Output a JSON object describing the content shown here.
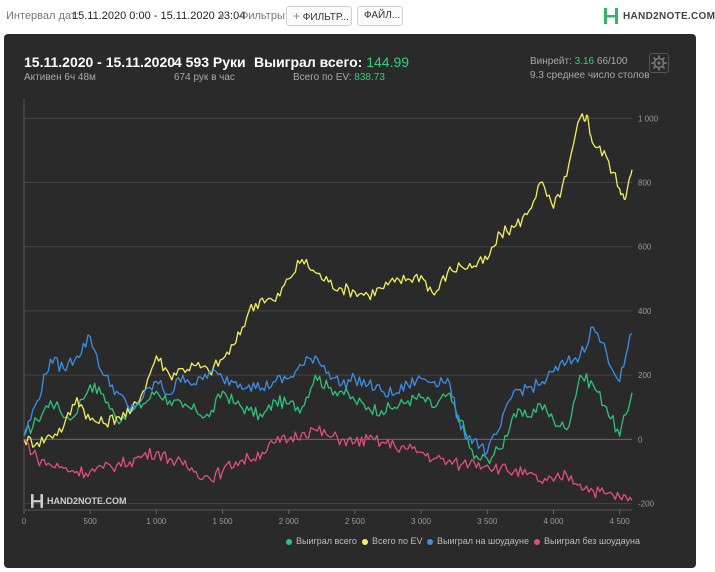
{
  "topbar": {
    "interval_label": "Интервал дат:",
    "interval_value": "15.11.2020 0:00 - 15.11.2020 23:04",
    "filters_label": "Фильтры:",
    "filters_button": "ФИЛЬТР...",
    "files_button": "ФАЙЛ...",
    "brand": "HAND2NOTE.COM"
  },
  "summary": {
    "date_range": "15.11.2020 - 15.11.2020",
    "active": "Активен 6ч 48м",
    "hands": "4 593 Руки",
    "hands_per_hour": "674 рук в час",
    "won_label": "Выиграл всего:",
    "won_value": "144.99",
    "ev_label": "Всего по EV:",
    "ev_value": "838.73",
    "winrate_label": "Винрейт:",
    "winrate_value": "3.16",
    "winrate_sample": "66/100",
    "tables": "9.3 среднее число столов"
  },
  "watermark": "HAND2NOTE.COM",
  "colors": {
    "won": "#2fc27a",
    "ev": "#f2f05a",
    "showdown": "#3d8ee6",
    "non_showdown": "#e0507a"
  },
  "chart_data": {
    "type": "line",
    "x_ticks": [
      "0",
      "500",
      "1 000",
      "1 500",
      "2 000",
      "2 500",
      "3 000",
      "3 500",
      "4 000",
      "4 500"
    ],
    "y_ticks": [
      "-200",
      "0",
      "200",
      "400",
      "600",
      "800",
      "1 000"
    ],
    "xlim": [
      0,
      4593
    ],
    "ylim": [
      -220,
      1060
    ],
    "grid": true,
    "legend_position": "bottom-right",
    "series": [
      {
        "name": "Выиграл всего",
        "color": "#2fc27a",
        "x": [
          0,
          100,
          200,
          350,
          500,
          600,
          700,
          800,
          900,
          1000,
          1100,
          1200,
          1300,
          1400,
          1500,
          1600,
          1700,
          1800,
          1900,
          2000,
          2100,
          2200,
          2300,
          2400,
          2500,
          2600,
          2700,
          2800,
          2900,
          3000,
          3100,
          3200,
          3300,
          3400,
          3500,
          3600,
          3700,
          3800,
          3900,
          4000,
          4100,
          4200,
          4300,
          4400,
          4500,
          4593
        ],
        "y": [
          10,
          60,
          120,
          60,
          170,
          140,
          60,
          90,
          110,
          150,
          120,
          100,
          90,
          70,
          150,
          110,
          90,
          70,
          120,
          110,
          100,
          200,
          160,
          150,
          120,
          100,
          90,
          100,
          120,
          130,
          100,
          140,
          60,
          -60,
          -60,
          -30,
          80,
          70,
          110,
          60,
          30,
          200,
          170,
          100,
          10,
          145
        ]
      },
      {
        "name": "Всего по EV",
        "color": "#f2f05a",
        "x": [
          0,
          100,
          200,
          300,
          400,
          500,
          600,
          700,
          800,
          900,
          1000,
          1100,
          1200,
          1300,
          1400,
          1500,
          1600,
          1700,
          1800,
          1900,
          2000,
          2100,
          2200,
          2300,
          2400,
          2500,
          2600,
          2700,
          2800,
          2900,
          3000,
          3100,
          3200,
          3300,
          3400,
          3500,
          3600,
          3700,
          3800,
          3900,
          4000,
          4100,
          4200,
          4250,
          4300,
          4400,
          4500,
          4550,
          4593
        ],
        "y": [
          0,
          -10,
          10,
          40,
          130,
          60,
          50,
          70,
          80,
          150,
          260,
          200,
          220,
          230,
          210,
          250,
          300,
          400,
          440,
          430,
          500,
          560,
          520,
          490,
          470,
          460,
          450,
          470,
          490,
          500,
          510,
          450,
          520,
          540,
          540,
          560,
          640,
          660,
          700,
          800,
          720,
          820,
          1000,
          1010,
          920,
          880,
          780,
          760,
          840
        ]
      },
      {
        "name": "Выиграл на шоудауне",
        "color": "#3d8ee6",
        "x": [
          0,
          100,
          200,
          300,
          400,
          500,
          600,
          700,
          800,
          900,
          1000,
          1100,
          1200,
          1300,
          1400,
          1500,
          1600,
          1700,
          1800,
          1900,
          2000,
          2100,
          2200,
          2300,
          2400,
          2500,
          2600,
          2700,
          2800,
          2900,
          3000,
          3100,
          3200,
          3300,
          3400,
          3500,
          3600,
          3700,
          3800,
          3900,
          4000,
          4100,
          4200,
          4300,
          4400,
          4500,
          4593
        ],
        "y": [
          10,
          120,
          250,
          220,
          260,
          320,
          200,
          150,
          90,
          130,
          180,
          140,
          200,
          170,
          210,
          190,
          180,
          170,
          160,
          180,
          190,
          230,
          260,
          210,
          170,
          190,
          170,
          150,
          140,
          170,
          190,
          180,
          190,
          30,
          0,
          -40,
          40,
          150,
          160,
          170,
          210,
          240,
          260,
          350,
          270,
          180,
          330
        ]
      },
      {
        "name": "Выиграл без шоудауна",
        "color": "#e0507a",
        "x": [
          0,
          100,
          200,
          300,
          400,
          500,
          600,
          700,
          800,
          900,
          1000,
          1100,
          1200,
          1300,
          1400,
          1500,
          1600,
          1700,
          1800,
          1900,
          2000,
          2100,
          2200,
          2300,
          2400,
          2500,
          2600,
          2700,
          2800,
          2900,
          3000,
          3100,
          3200,
          3300,
          3400,
          3500,
          3600,
          3700,
          3800,
          3900,
          4000,
          4100,
          4200,
          4300,
          4400,
          4500,
          4593
        ],
        "y": [
          0,
          -60,
          -80,
          -90,
          -100,
          -100,
          -90,
          -80,
          -70,
          -50,
          -40,
          -60,
          -80,
          -100,
          -120,
          -100,
          -70,
          -60,
          -40,
          -10,
          0,
          20,
          30,
          10,
          0,
          -10,
          0,
          -10,
          -20,
          -30,
          -40,
          -60,
          -70,
          -80,
          -70,
          -80,
          -90,
          -100,
          -110,
          -130,
          -130,
          -110,
          -140,
          -160,
          -170,
          -180,
          -190
        ]
      }
    ]
  }
}
